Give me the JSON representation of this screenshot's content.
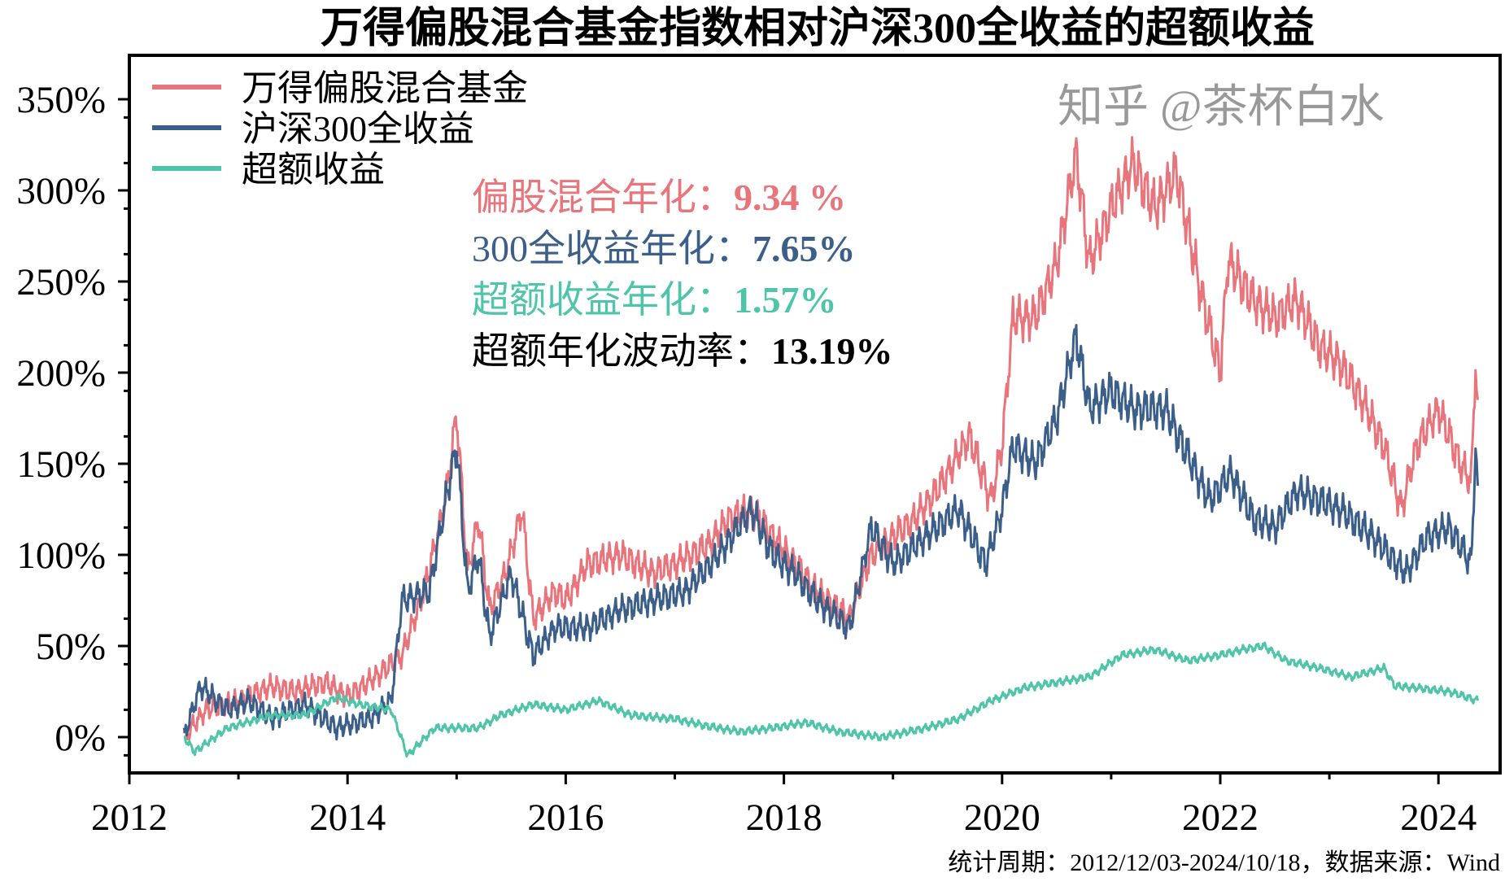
{
  "chart_data": {
    "type": "line",
    "title": "万得偏股混合基金指数相对沪深300全收益的超额收益",
    "xlabel": "",
    "ylabel": "",
    "xlim": [
      2012,
      2024.5
    ],
    "ylim": [
      -20,
      370
    ],
    "x_ticks": [
      "2012",
      "2014",
      "2016",
      "2018",
      "2020",
      "2022",
      "2024"
    ],
    "y_ticks": [
      "0%",
      "50%",
      "100%",
      "150%",
      "200%",
      "250%",
      "300%",
      "350%"
    ],
    "grid": false,
    "legend_placement": "top-left",
    "series": [
      {
        "name": "万得偏股混合基金",
        "color": "#E8747C",
        "points": [
          [
            2012.5,
            0
          ],
          [
            2012.7,
            15
          ],
          [
            2013.0,
            20
          ],
          [
            2013.3,
            28
          ],
          [
            2013.5,
            25
          ],
          [
            2013.8,
            30
          ],
          [
            2014.0,
            22
          ],
          [
            2014.3,
            35
          ],
          [
            2014.5,
            45
          ],
          [
            2014.7,
            80
          ],
          [
            2014.9,
            130
          ],
          [
            2015.0,
            178
          ],
          [
            2015.1,
            90
          ],
          [
            2015.2,
            120
          ],
          [
            2015.3,
            70
          ],
          [
            2015.45,
            90
          ],
          [
            2015.6,
            125
          ],
          [
            2015.7,
            65
          ],
          [
            2015.9,
            80
          ],
          [
            2016.0,
            75
          ],
          [
            2016.2,
            95
          ],
          [
            2016.5,
            100
          ],
          [
            2016.8,
            90
          ],
          [
            2017.0,
            95
          ],
          [
            2017.3,
            105
          ],
          [
            2017.5,
            120
          ],
          [
            2017.7,
            125
          ],
          [
            2017.9,
            110
          ],
          [
            2018.1,
            95
          ],
          [
            2018.3,
            80
          ],
          [
            2018.6,
            65
          ],
          [
            2018.8,
            100
          ],
          [
            2019.0,
            110
          ],
          [
            2019.2,
            120
          ],
          [
            2019.4,
            135
          ],
          [
            2019.7,
            165
          ],
          [
            2019.9,
            130
          ],
          [
            2020.0,
            160
          ],
          [
            2020.1,
            230
          ],
          [
            2020.3,
            230
          ],
          [
            2020.5,
            260
          ],
          [
            2020.68,
            320
          ],
          [
            2020.8,
            260
          ],
          [
            2021.0,
            290
          ],
          [
            2021.2,
            315
          ],
          [
            2021.4,
            290
          ],
          [
            2021.6,
            310
          ],
          [
            2021.8,
            250
          ],
          [
            2022.0,
            200
          ],
          [
            2022.07,
            262
          ],
          [
            2022.3,
            240
          ],
          [
            2022.5,
            230
          ],
          [
            2022.7,
            240
          ],
          [
            2022.9,
            215
          ],
          [
            2023.1,
            205
          ],
          [
            2023.3,
            185
          ],
          [
            2023.5,
            160
          ],
          [
            2023.66,
            125
          ],
          [
            2023.8,
            160
          ],
          [
            2024.0,
            180
          ],
          [
            2024.2,
            150
          ],
          [
            2024.3,
            140
          ],
          [
            2024.34,
            205
          ],
          [
            2024.36,
            185
          ]
        ]
      },
      {
        "name": "沪深300全收益",
        "color": "#3C5F8A",
        "points": [
          [
            2012.5,
            0
          ],
          [
            2012.65,
            28
          ],
          [
            2012.9,
            15
          ],
          [
            2013.1,
            20
          ],
          [
            2013.3,
            10
          ],
          [
            2013.6,
            18
          ],
          [
            2013.9,
            5
          ],
          [
            2014.2,
            10
          ],
          [
            2014.4,
            20
          ],
          [
            2014.5,
            75
          ],
          [
            2014.75,
            80
          ],
          [
            2014.9,
            130
          ],
          [
            2015.0,
            160
          ],
          [
            2015.1,
            80
          ],
          [
            2015.2,
            100
          ],
          [
            2015.3,
            55
          ],
          [
            2015.5,
            90
          ],
          [
            2015.7,
            45
          ],
          [
            2015.9,
            60
          ],
          [
            2016.2,
            60
          ],
          [
            2016.5,
            70
          ],
          [
            2016.8,
            75
          ],
          [
            2017.1,
            80
          ],
          [
            2017.4,
            100
          ],
          [
            2017.7,
            125
          ],
          [
            2017.9,
            100
          ],
          [
            2018.1,
            90
          ],
          [
            2018.3,
            75
          ],
          [
            2018.6,
            60
          ],
          [
            2018.8,
            115
          ],
          [
            2019.0,
            95
          ],
          [
            2019.3,
            110
          ],
          [
            2019.6,
            125
          ],
          [
            2019.85,
            95
          ],
          [
            2020.0,
            125
          ],
          [
            2020.1,
            160
          ],
          [
            2020.3,
            150
          ],
          [
            2020.5,
            175
          ],
          [
            2020.68,
            220
          ],
          [
            2020.8,
            180
          ],
          [
            2021.0,
            190
          ],
          [
            2021.2,
            180
          ],
          [
            2021.5,
            180
          ],
          [
            2021.7,
            155
          ],
          [
            2021.9,
            130
          ],
          [
            2022.1,
            145
          ],
          [
            2022.3,
            120
          ],
          [
            2022.5,
            115
          ],
          [
            2022.7,
            135
          ],
          [
            2022.9,
            130
          ],
          [
            2023.1,
            125
          ],
          [
            2023.4,
            110
          ],
          [
            2023.7,
            90
          ],
          [
            2023.9,
            110
          ],
          [
            2024.1,
            115
          ],
          [
            2024.3,
            95
          ],
          [
            2024.34,
            158
          ],
          [
            2024.36,
            138
          ]
        ]
      },
      {
        "name": "超额收益",
        "color": "#4EC4A8",
        "points": [
          [
            2012.5,
            0
          ],
          [
            2012.6,
            -8
          ],
          [
            2012.9,
            5
          ],
          [
            2013.3,
            12
          ],
          [
            2013.6,
            12
          ],
          [
            2013.9,
            22
          ],
          [
            2014.1,
            18
          ],
          [
            2014.4,
            15
          ],
          [
            2014.55,
            -10
          ],
          [
            2014.8,
            5
          ],
          [
            2015.0,
            5
          ],
          [
            2015.2,
            5
          ],
          [
            2015.4,
            12
          ],
          [
            2015.7,
            18
          ],
          [
            2016.0,
            15
          ],
          [
            2016.3,
            20
          ],
          [
            2016.6,
            12
          ],
          [
            2017.0,
            10
          ],
          [
            2017.3,
            6
          ],
          [
            2017.6,
            3
          ],
          [
            2017.9,
            5
          ],
          [
            2018.2,
            8
          ],
          [
            2018.5,
            3
          ],
          [
            2018.9,
            0
          ],
          [
            2019.3,
            5
          ],
          [
            2019.6,
            10
          ],
          [
            2019.9,
            20
          ],
          [
            2020.2,
            27
          ],
          [
            2020.5,
            30
          ],
          [
            2020.8,
            33
          ],
          [
            2021.1,
            45
          ],
          [
            2021.4,
            48
          ],
          [
            2021.7,
            42
          ],
          [
            2022.0,
            45
          ],
          [
            2022.2,
            48
          ],
          [
            2022.4,
            50
          ],
          [
            2022.6,
            42
          ],
          [
            2022.9,
            38
          ],
          [
            2023.2,
            33
          ],
          [
            2023.5,
            38
          ],
          [
            2023.6,
            28
          ],
          [
            2023.8,
            27
          ],
          [
            2024.1,
            25
          ],
          [
            2024.36,
            20
          ]
        ]
      }
    ],
    "annotations": [
      {
        "text": "偏股混合年化：",
        "value": "9.34 %",
        "color": "#E8747C"
      },
      {
        "text": "300全收益年化：",
        "value": "7.65%",
        "color": "#3C5F8A"
      },
      {
        "text": "超额收益年化：",
        "value": "1.57%",
        "color": "#4EC4A8"
      },
      {
        "text": "超额年化波动率：",
        "value": "13.19%",
        "color": "#000000"
      }
    ],
    "footer": "统计周期：2012/12/03-2024/10/18，数据来源：Wind",
    "watermark": "知乎 @茶杯白水"
  }
}
